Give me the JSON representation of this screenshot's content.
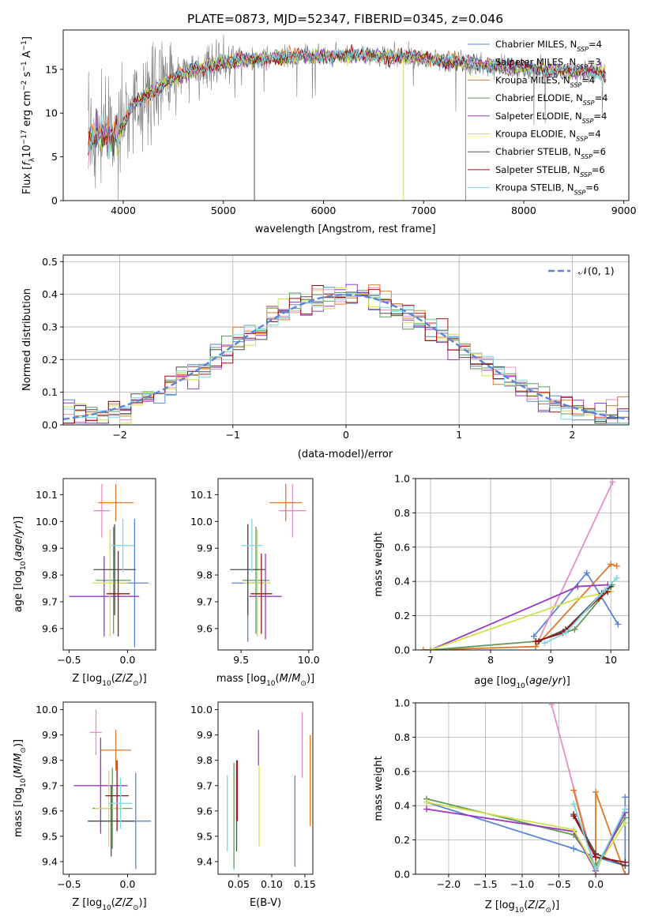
{
  "title": "PLATE=0873, MJD=52347, FIBERID=0345, z=0.046",
  "colors": {
    "Chabrier MILES": "#5b86d6",
    "Salpeter MILES": "#e88ec4",
    "Kroupa MILES": "#e0782a",
    "Chabrier ELODIE": "#5f9c5c",
    "Salpeter ELODIE": "#9b39c0",
    "Kroupa ELODIE": "#cfe048",
    "Chabrier STELIB": "#4b4b4b",
    "Salpeter STELIB": "#a01010",
    "Kroupa STELIB": "#7fd6e0"
  },
  "chart_data": [
    {
      "id": "spectrum",
      "type": "line",
      "xlabel": "wavelength [Angstrom, rest frame]",
      "ylabel": "Flux [f_λ10^-17 erg cm^-2 s^-1 A^-1]",
      "xlim": [
        3400,
        9050
      ],
      "ylim": [
        0,
        19.5
      ],
      "xticks": [
        4000,
        5000,
        6000,
        7000,
        8000,
        9000
      ],
      "yticks": [
        0,
        5,
        10,
        15
      ],
      "legend_position": "upper-right",
      "legend": [
        {
          "label": "Chabrier MILES, N",
          "sub": "SSP",
          "suffix": "=4",
          "color_key": "Chabrier MILES"
        },
        {
          "label": "Salpeter MILES, N",
          "sub": "SSP",
          "suffix": "=3",
          "color_key": "Salpeter MILES"
        },
        {
          "label": "Kroupa MILES, N",
          "sub": "SSP",
          "suffix": "=4",
          "color_key": "Kroupa MILES"
        },
        {
          "label": "Chabrier ELODIE, N",
          "sub": "SSP",
          "suffix": "=4",
          "color_key": "Chabrier ELODIE"
        },
        {
          "label": "Salpeter ELODIE, N",
          "sub": "SSP",
          "suffix": "=4",
          "color_key": "Salpeter ELODIE"
        },
        {
          "label": "Kroupa ELODIE, N",
          "sub": "SSP",
          "suffix": "=4",
          "color_key": "Kroupa ELODIE"
        },
        {
          "label": "Chabrier STELIB, N",
          "sub": "SSP",
          "suffix": "=6",
          "color_key": "Chabrier STELIB"
        },
        {
          "label": "Salpeter STELIB, N",
          "sub": "SSP",
          "suffix": "=6",
          "color_key": "Salpeter STELIB"
        },
        {
          "label": "Kroupa STELIB, N",
          "sub": "SSP",
          "suffix": "=6",
          "color_key": "Kroupa STELIB"
        }
      ],
      "data_range": [
        3650,
        8820
      ],
      "continuum": {
        "x": [
          3650,
          3800,
          3900,
          4000,
          4100,
          4300,
          4500,
          4700,
          5000,
          5500,
          6000,
          6500,
          7000,
          7500,
          8000,
          8500,
          8820
        ],
        "y": [
          7.0,
          7.8,
          7.0,
          8.5,
          11.0,
          12.5,
          14.0,
          15.0,
          15.8,
          16.3,
          16.6,
          16.6,
          16.3,
          15.6,
          15.1,
          14.8,
          14.6
        ]
      },
      "spikes": [
        {
          "x": 5310,
          "y": 0.0,
          "color_key": "Chabrier STELIB"
        },
        {
          "x": 6800,
          "y": 0.0,
          "color_key": "Kroupa ELODIE"
        },
        {
          "x": 7420,
          "y": 0.0,
          "color_key": "Kroupa MILES"
        }
      ]
    },
    {
      "id": "residuals",
      "type": "histogram",
      "xlabel": "(data-model)/error",
      "ylabel": "Normed distribution",
      "xlim": [
        -2.5,
        2.5
      ],
      "ylim": [
        0,
        0.52
      ],
      "xticks": [
        -2,
        -1,
        0,
        1,
        2
      ],
      "yticks": [
        0.0,
        0.1,
        0.2,
        0.3,
        0.4,
        0.5
      ],
      "grid": true,
      "legend": [
        {
          "label": "𝒩(0, 1)",
          "color": "#5b86d6",
          "dashed": true
        }
      ],
      "legend_position": "upper-right",
      "bin_width": 0.1
    },
    {
      "id": "age-vs-Z",
      "type": "errorbar",
      "xlabel": "Z [log10(Z/Z⊙)]",
      "ylabel": "age [log10(age/yr)]",
      "xlim": [
        -0.55,
        0.24
      ],
      "ylim": [
        9.52,
        10.16
      ],
      "xticks": [
        -0.5,
        0.0
      ],
      "yticks": [
        9.6,
        9.7,
        9.8,
        9.9,
        10.0,
        10.1
      ],
      "points": [
        {
          "key": "Chabrier MILES",
          "x": 0.06,
          "y": 9.77,
          "xerr": 0.12,
          "yerr": 0.24
        },
        {
          "key": "Salpeter MILES",
          "x": -0.22,
          "y": 10.04,
          "xerr": 0.07,
          "yerr": 0.1
        },
        {
          "key": "Kroupa MILES",
          "x": -0.1,
          "y": 10.07,
          "xerr": 0.15,
          "yerr": 0.07
        },
        {
          "key": "Chabrier ELODIE",
          "x": -0.12,
          "y": 9.78,
          "xerr": 0.15,
          "yerr": 0.2
        },
        {
          "key": "Salpeter ELODIE",
          "x": -0.2,
          "y": 9.72,
          "xerr": 0.3,
          "yerr": 0.15
        },
        {
          "key": "Kroupa ELODIE",
          "x": -0.15,
          "y": 9.77,
          "xerr": 0.15,
          "yerr": 0.2
        },
        {
          "key": "Chabrier STELIB",
          "x": -0.11,
          "y": 9.82,
          "xerr": 0.18,
          "yerr": 0.17
        },
        {
          "key": "Salpeter STELIB",
          "x": -0.08,
          "y": 9.73,
          "xerr": 0.1,
          "yerr": 0.16
        },
        {
          "key": "Kroupa STELIB",
          "x": -0.04,
          "y": 9.91,
          "xerr": 0.1,
          "yerr": 0.1
        }
      ]
    },
    {
      "id": "age-vs-mass",
      "type": "errorbar",
      "xlabel": "mass [log10(M/M⊙)]",
      "ylabel": "",
      "xlim": [
        9.33,
        10.03
      ],
      "ylim": [
        9.52,
        10.16
      ],
      "xticks": [
        9.5,
        10.0
      ],
      "yticks": [
        9.6,
        9.7,
        9.8,
        9.9,
        10.0,
        10.1
      ],
      "points": [
        {
          "key": "Chabrier MILES",
          "x": 9.55,
          "y": 9.77,
          "xerr": 0.12,
          "yerr": 0.22
        },
        {
          "key": "Salpeter MILES",
          "x": 9.88,
          "y": 10.04,
          "xerr": 0.1,
          "yerr": 0.1
        },
        {
          "key": "Kroupa MILES",
          "x": 9.83,
          "y": 10.07,
          "xerr": 0.12,
          "yerr": 0.07
        },
        {
          "key": "Chabrier ELODIE",
          "x": 9.61,
          "y": 9.78,
          "xerr": 0.1,
          "yerr": 0.2
        },
        {
          "key": "Salpeter ELODIE",
          "x": 9.68,
          "y": 9.72,
          "xerr": 0.12,
          "yerr": 0.16
        },
        {
          "key": "Kroupa ELODIE",
          "x": 9.62,
          "y": 9.77,
          "xerr": 0.1,
          "yerr": 0.2
        },
        {
          "key": "Chabrier STELIB",
          "x": 9.55,
          "y": 9.82,
          "xerr": 0.13,
          "yerr": 0.17
        },
        {
          "key": "Salpeter STELIB",
          "x": 9.65,
          "y": 9.73,
          "xerr": 0.08,
          "yerr": 0.15
        },
        {
          "key": "Kroupa STELIB",
          "x": 9.58,
          "y": 9.91,
          "xerr": 0.08,
          "yerr": 0.1
        }
      ]
    },
    {
      "id": "weight-vs-age",
      "type": "line",
      "xlabel": "age [log10(age/yr)]",
      "ylabel": "mass weight",
      "xlim": [
        6.75,
        10.3
      ],
      "ylim": [
        0,
        1.0
      ],
      "xticks": [
        7,
        8,
        9,
        10
      ],
      "yticks": [
        0.0,
        0.2,
        0.4,
        0.6,
        0.8,
        1.0
      ],
      "grid": true,
      "series": [
        {
          "key": "Chabrier MILES",
          "x": [
            8.72,
            9.6,
            10.12
          ],
          "y": [
            0.08,
            0.45,
            0.15
          ]
        },
        {
          "key": "Salpeter MILES",
          "x": [
            8.75,
            10.03
          ],
          "y": [
            0.02,
            0.98
          ]
        },
        {
          "key": "Kroupa MILES",
          "x": [
            6.88,
            8.75,
            10.0,
            10.1
          ],
          "y": [
            0.0,
            0.02,
            0.5,
            0.49
          ]
        },
        {
          "key": "Chabrier ELODIE",
          "x": [
            7.0,
            8.75,
            9.4,
            10.02
          ],
          "y": [
            0.0,
            0.05,
            0.12,
            0.38
          ]
        },
        {
          "key": "Salpeter ELODIE",
          "x": [
            7.0,
            9.45,
            9.95
          ],
          "y": [
            0.0,
            0.37,
            0.38
          ]
        },
        {
          "key": "Kroupa ELODIE",
          "x": [
            7.0,
            9.45,
            10.0
          ],
          "y": [
            0.0,
            0.3,
            0.34
          ]
        },
        {
          "key": "Chabrier STELIB",
          "x": [
            8.8,
            9.25,
            9.85,
            10.0
          ],
          "y": [
            0.05,
            0.12,
            0.33,
            0.37
          ]
        },
        {
          "key": "Salpeter STELIB",
          "x": [
            8.75,
            9.2,
            9.8,
            9.95
          ],
          "y": [
            0.05,
            0.1,
            0.3,
            0.34
          ]
        },
        {
          "key": "Kroupa STELIB",
          "x": [
            8.9,
            9.25,
            9.9,
            10.1
          ],
          "y": [
            0.04,
            0.1,
            0.35,
            0.42
          ]
        }
      ]
    },
    {
      "id": "mass-vs-Z",
      "type": "errorbar",
      "xlabel": "Z [log10(Z/Z⊙)]",
      "ylabel": "mass [log10(M/M⊙)]",
      "xlim": [
        -0.55,
        0.24
      ],
      "ylim": [
        9.35,
        10.03
      ],
      "xticks": [
        -0.5,
        0.0
      ],
      "yticks": [
        9.4,
        9.5,
        9.6,
        9.7,
        9.8,
        9.9,
        10.0
      ],
      "points": [
        {
          "key": "Chabrier MILES",
          "x": 0.07,
          "y": 9.56,
          "xerr": 0.13,
          "yerr": 0.19
        },
        {
          "key": "Salpeter MILES",
          "x": -0.27,
          "y": 9.91,
          "xerr": 0.05,
          "yerr": 0.09
        },
        {
          "key": "Kroupa MILES",
          "x": -0.1,
          "y": 9.84,
          "xerr": 0.13,
          "yerr": 0.08
        },
        {
          "key": "Chabrier ELODIE",
          "x": -0.13,
          "y": 9.61,
          "xerr": 0.17,
          "yerr": 0.16
        },
        {
          "key": "Salpeter ELODIE",
          "x": -0.23,
          "y": 9.7,
          "xerr": 0.23,
          "yerr": 0.19
        },
        {
          "key": "Kroupa ELODIE",
          "x": -0.16,
          "y": 9.61,
          "xerr": 0.12,
          "yerr": 0.15
        },
        {
          "key": "Chabrier STELIB",
          "x": -0.14,
          "y": 9.56,
          "xerr": 0.2,
          "yerr": 0.14
        },
        {
          "key": "Salpeter STELIB",
          "x": -0.09,
          "y": 9.66,
          "xerr": 0.1,
          "yerr": 0.14
        },
        {
          "key": "Kroupa STELIB",
          "x": -0.06,
          "y": 9.63,
          "xerr": 0.1,
          "yerr": 0.1
        }
      ]
    },
    {
      "id": "mass-vs-EBV",
      "type": "errorbar",
      "xlabel": "E(B-V)",
      "ylabel": "",
      "xlim": [
        0.019,
        0.162
      ],
      "ylim": [
        9.35,
        10.03
      ],
      "xticks": [
        0.05,
        0.1,
        0.15
      ],
      "yticks": [
        9.4,
        9.5,
        9.6,
        9.7,
        9.8,
        9.9,
        10.0
      ],
      "points": [
        {
          "key": "Chabrier MILES",
          "x": 0.135,
          "y": 9.56,
          "xerr": 0,
          "yerr": 0.18
        },
        {
          "key": "Salpeter MILES",
          "x": 0.146,
          "y": 9.86,
          "xerr": 0,
          "yerr": 0.13
        },
        {
          "key": "Kroupa MILES",
          "x": 0.158,
          "y": 9.72,
          "xerr": 0,
          "yerr": 0.18
        },
        {
          "key": "Chabrier ELODIE",
          "x": 0.043,
          "y": 9.58,
          "xerr": 0,
          "yerr": 0.21
        },
        {
          "key": "Salpeter ELODIE",
          "x": 0.08,
          "y": 9.85,
          "xerr": 0,
          "yerr": 0.07
        },
        {
          "key": "Kroupa ELODIE",
          "x": 0.081,
          "y": 9.62,
          "xerr": 0,
          "yerr": 0.16
        },
        {
          "key": "Chabrier STELIB",
          "x": 0.047,
          "y": 9.62,
          "xerr": 0,
          "yerr": 0.18
        },
        {
          "key": "Salpeter STELIB",
          "x": 0.048,
          "y": 9.68,
          "xerr": 0,
          "yerr": 0.12
        },
        {
          "key": "Kroupa STELIB",
          "x": 0.033,
          "y": 9.59,
          "xerr": 0,
          "yerr": 0.15
        }
      ]
    },
    {
      "id": "weight-vs-Z",
      "type": "line",
      "xlabel": "Z [log10(Z/Z⊙)]",
      "ylabel": "mass weight",
      "xlim": [
        -2.45,
        0.45
      ],
      "ylim": [
        0,
        1.0
      ],
      "xticks": [
        -2.0,
        -1.5,
        -1.0,
        -0.5,
        0.0
      ],
      "yticks": [
        0.0,
        0.2,
        0.4,
        0.6,
        0.8,
        1.0
      ],
      "grid": true,
      "series": [
        {
          "key": "Chabrier MILES",
          "x": [
            -2.3,
            -0.3,
            0.0,
            0.4,
            0.4
          ],
          "y": [
            0.42,
            0.15,
            0.1,
            0.05,
            0.45
          ]
        },
        {
          "key": "Salpeter MILES",
          "x": [
            -0.6,
            0.0,
            0.0,
            0.4
          ],
          "y": [
            0.99,
            0.02,
            0.0,
            0.0
          ]
        },
        {
          "key": "Kroupa MILES",
          "x": [
            -0.3,
            0.0,
            0.0,
            0.4
          ],
          "y": [
            0.49,
            0.0,
            0.48,
            0.0
          ]
        },
        {
          "key": "Chabrier ELODIE",
          "x": [
            -2.3,
            -0.3,
            0.0,
            0.4
          ],
          "y": [
            0.44,
            0.23,
            0.05,
            0.33
          ]
        },
        {
          "key": "Salpeter ELODIE",
          "x": [
            -2.3,
            -0.3,
            0.0,
            0.4
          ],
          "y": [
            0.38,
            0.25,
            0.02,
            0.36
          ]
        },
        {
          "key": "Kroupa ELODIE",
          "x": [
            -2.3,
            -0.3,
            0.0,
            0.4
          ],
          "y": [
            0.42,
            0.26,
            0.03,
            0.3
          ]
        },
        {
          "key": "Chabrier STELIB",
          "x": [
            -0.3,
            0.0,
            0.4
          ],
          "y": [
            0.35,
            0.12,
            0.05
          ]
        },
        {
          "key": "Salpeter STELIB",
          "x": [
            -0.3,
            0.0,
            0.4
          ],
          "y": [
            0.34,
            0.1,
            0.07
          ]
        },
        {
          "key": "Kroupa STELIB",
          "x": [
            -0.3,
            0.0,
            0.4
          ],
          "y": [
            0.41,
            0.03,
            0.38
          ]
        }
      ]
    }
  ]
}
